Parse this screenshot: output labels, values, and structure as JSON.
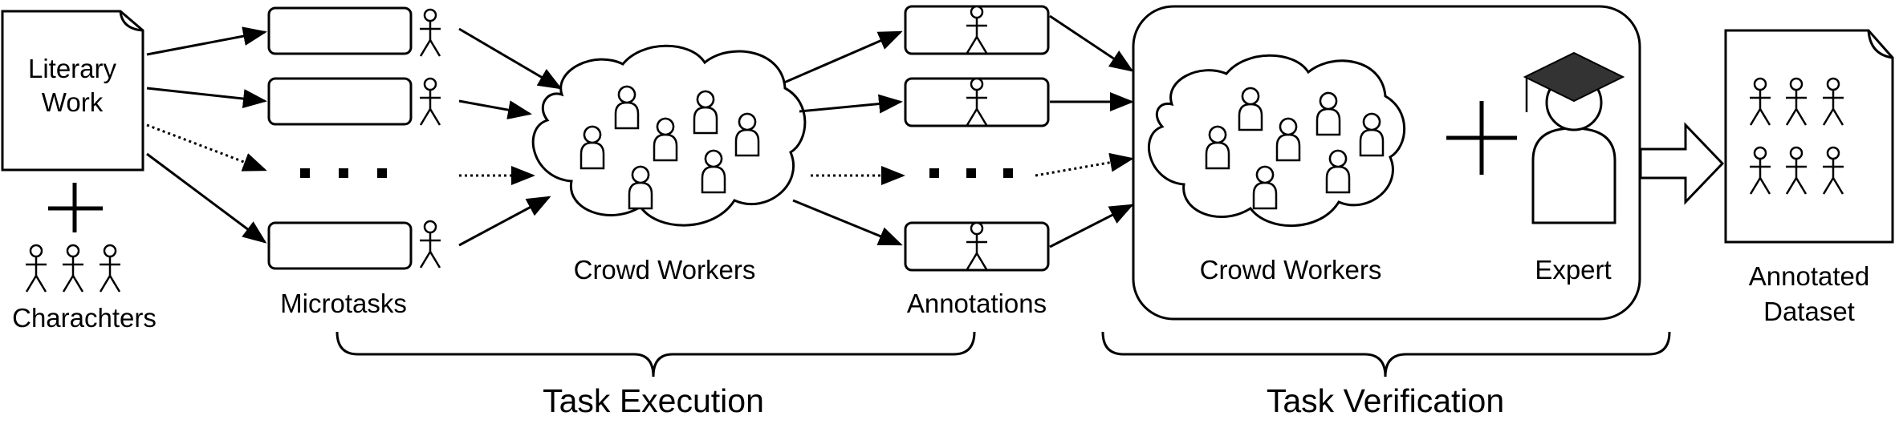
{
  "labels": {
    "literary_work_line1": "Literary",
    "literary_work_line2": "Work",
    "characters": "Charachters",
    "microtasks": "Microtasks",
    "crowd_workers_execution": "Crowd Workers",
    "annotations": "Annotations",
    "crowd_workers_verification": "Crowd Workers",
    "expert": "Expert",
    "annotated_dataset_line1": "Annotated",
    "annotated_dataset_line2": "Dataset",
    "task_execution": "Task Execution",
    "task_verification": "Task Verification"
  },
  "colors": {
    "stroke": "#000000",
    "background": "#ffffff",
    "cap": "#333333"
  }
}
